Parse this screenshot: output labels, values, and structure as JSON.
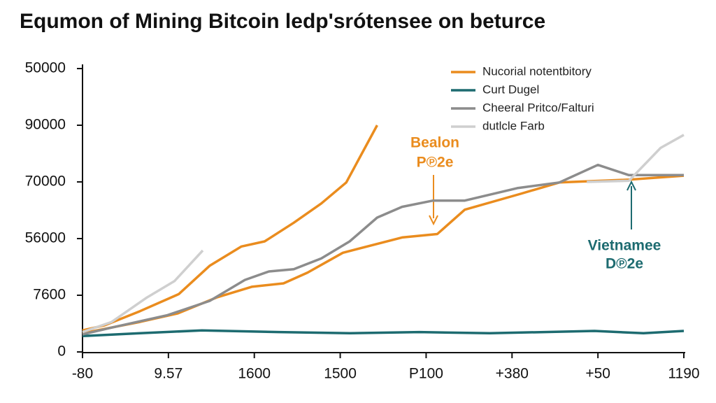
{
  "chart_data": {
    "type": "line",
    "title": "Equmon of Mining Bitcoin ledp'srótensee on beturce",
    "xlim": [
      0,
      7
    ],
    "xticks": [
      {
        "value": 0,
        "label": "-80"
      },
      {
        "value": 1,
        "label": "9.57"
      },
      {
        "value": 2,
        "label": "1600"
      },
      {
        "value": 3,
        "label": "1500"
      },
      {
        "value": 4,
        "label": "P100"
      },
      {
        "value": 5,
        "label": "+380"
      },
      {
        "value": 6,
        "label": "+50"
      },
      {
        "value": 7,
        "label": "1190"
      }
    ],
    "ylim": [
      0,
      5
    ],
    "yticks": [
      0,
      {
        "value": 1,
        "label": "7600"
      },
      {
        "value": 2,
        "label": "56000"
      },
      {
        "value": 3,
        "label": "70000"
      },
      {
        "value": 4,
        "label": "90000"
      },
      {
        "value": 5,
        "label": "50000"
      }
    ],
    "legend": "upper right",
    "series": [
      {
        "name": "Nucorial notentbitory",
        "color": "#ea8c1e",
        "x": [
          0,
          0.26,
          0.67,
          1.12,
          1.48,
          1.85,
          2.12,
          2.46,
          2.78,
          3.07,
          3.43,
          null,
          0,
          0.67,
          1.11,
          1.56,
          1.97,
          2.34,
          2.62,
          3.03,
          3.72,
          4.13,
          4.45,
          5.1,
          5.55,
          6.36,
          7.0
        ],
        "values": [
          0.38,
          0.47,
          0.72,
          1.02,
          1.52,
          1.86,
          1.95,
          2.28,
          2.62,
          2.99,
          4.0,
          null,
          0.33,
          0.53,
          0.68,
          0.96,
          1.15,
          1.21,
          1.4,
          1.75,
          2.02,
          2.08,
          2.51,
          2.79,
          2.99,
          3.04,
          3.11
        ]
      },
      {
        "name": "Curt Dugel",
        "color": "#1d6b70",
        "x": [
          0,
          0.67,
          1.39,
          2.29,
          3.11,
          3.92,
          4.74,
          5.96,
          6.53,
          7.0
        ],
        "values": [
          0.28,
          0.33,
          0.38,
          0.35,
          0.33,
          0.35,
          0.33,
          0.37,
          0.33,
          0.37
        ]
      },
      {
        "name": "Cheeral Pritco/Falturi",
        "color": "#8c8c8c",
        "x": [
          0,
          0.34,
          0.99,
          1.48,
          1.89,
          2.17,
          2.46,
          2.78,
          3.11,
          3.43,
          3.72,
          4.08,
          4.45,
          5.06,
          5.55,
          6.0,
          6.36,
          7.0
        ],
        "values": [
          0.31,
          0.43,
          0.65,
          0.9,
          1.27,
          1.42,
          1.46,
          1.65,
          1.95,
          2.37,
          2.56,
          2.67,
          2.67,
          2.89,
          2.99,
          3.3,
          3.12,
          3.12
        ]
      },
      {
        "name": "dutlcle Farb",
        "color": "#cfcfcf",
        "x": [
          0,
          0.34,
          0.75,
          1.07,
          1.4,
          null,
          5.87,
          6.36,
          6.73,
          7.0
        ],
        "values": [
          0.35,
          0.53,
          0.96,
          1.25,
          1.79,
          null,
          3.0,
          3.02,
          3.6,
          3.83
        ]
      }
    ],
    "annotations": [
      {
        "text": [
          "Bealon",
          "P℗2e"
        ],
        "color": "#ea8c1e"
      },
      {
        "text": [
          "Vietnamee",
          "D℗2e"
        ],
        "color": "#1d6b70"
      }
    ]
  }
}
